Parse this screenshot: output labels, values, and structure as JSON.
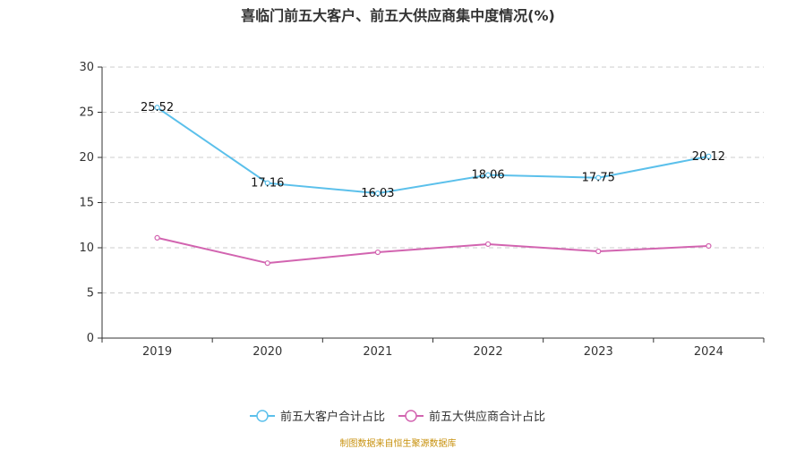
{
  "chart_data": {
    "type": "line",
    "title": "喜临门前五大客户、前五大供应商集中度情况(%)",
    "xlabel": "",
    "ylabel": "",
    "categories": [
      "2019",
      "2020",
      "2021",
      "2022",
      "2023",
      "2024"
    ],
    "ylim": [
      0,
      30
    ],
    "yticks": [
      0,
      5,
      10,
      15,
      20,
      25,
      30
    ],
    "grid": "horizontal dashed",
    "legend_position": "bottom",
    "series": [
      {
        "name": "前五大客户合计占比",
        "color": "#5bc0eb",
        "values": [
          25.52,
          17.16,
          16.03,
          18.06,
          17.75,
          20.12
        ],
        "data_labels": [
          "25.52",
          "17.16",
          "16.03",
          "18.06",
          "17.75",
          "20.12"
        ]
      },
      {
        "name": "前五大供应商合计占比",
        "color": "#d264b0",
        "values": [
          11.1,
          8.3,
          9.5,
          10.4,
          9.6,
          10.2
        ]
      }
    ]
  },
  "footer": "制图数据来自恒生聚源数据库"
}
